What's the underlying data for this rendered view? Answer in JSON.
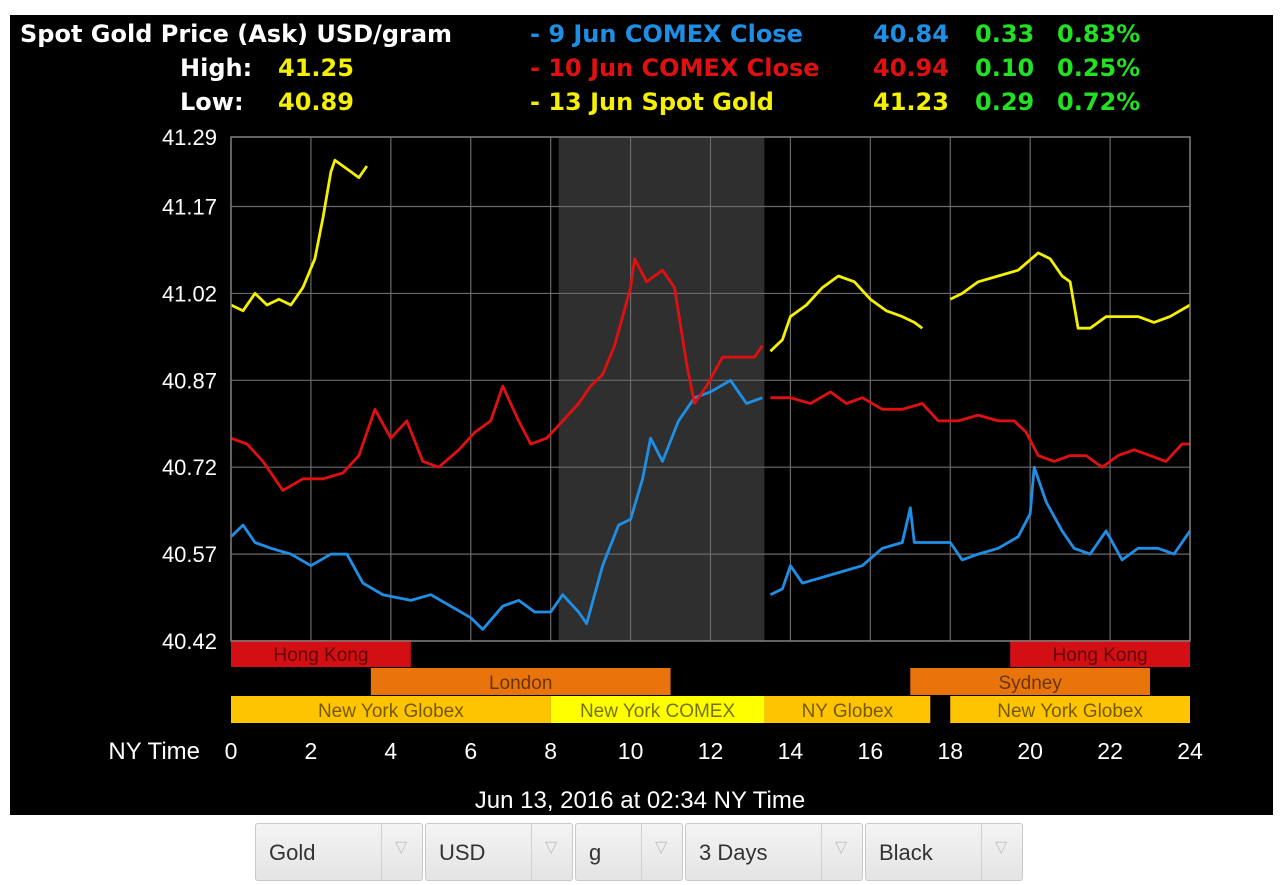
{
  "header": {
    "title": "Spot Gold Price (Ask) USD/gram",
    "high_label": "High:",
    "high_value": "41.25",
    "low_label": "Low:",
    "low_value": "40.89",
    "legend": [
      {
        "label": "- 9 Jun COMEX Close",
        "value": "40.84",
        "change": "0.33",
        "pct": "0.83%",
        "color": "#1f8fe6"
      },
      {
        "label": "- 10 Jun COMEX Close",
        "value": "40.94",
        "change": "0.10",
        "pct": "0.25%",
        "color": "#e01010"
      },
      {
        "label": "- 13 Jun Spot Gold",
        "value": "41.23",
        "change": "0.29",
        "pct": "0.72%",
        "color": "#f4f000"
      }
    ],
    "change_color": "#22e022"
  },
  "footer": {
    "x_title": "NY Time",
    "timestamp": "Jun 13, 2016 at 02:34 NY Time"
  },
  "chart_data": {
    "type": "line",
    "title": "Spot Gold Price (Ask) USD/gram",
    "xlabel": "NY Time",
    "xlim": [
      0,
      24
    ],
    "ylim": [
      40.42,
      41.29
    ],
    "x_ticks": [
      "0",
      "2",
      "4",
      "6",
      "8",
      "10",
      "12",
      "14",
      "16",
      "18",
      "20",
      "22",
      "24"
    ],
    "y_ticks": [
      "41.29",
      "41.17",
      "41.02",
      "40.87",
      "40.72",
      "40.57",
      "40.42"
    ],
    "grid": true,
    "shaded_region": [
      8.2,
      13.35
    ],
    "sessions": [
      {
        "name": "Hong Kong",
        "start": 0,
        "end": 4.5,
        "row": 0,
        "color": "#d40f14"
      },
      {
        "name": "Hong Kong",
        "start": 19.5,
        "end": 24,
        "row": 0,
        "color": "#d40f14"
      },
      {
        "name": "London",
        "start": 3.5,
        "end": 11,
        "row": 1,
        "color": "#e8740b"
      },
      {
        "name": "Sydney",
        "start": 17,
        "end": 23,
        "row": 1,
        "color": "#e8740b"
      },
      {
        "name": "New York Globex",
        "start": 0,
        "end": 8,
        "row": 2,
        "color": "#ffc400"
      },
      {
        "name": "New York COMEX",
        "start": 8,
        "end": 13.35,
        "row": 2,
        "color": "#ffff00"
      },
      {
        "name": "NY Globex",
        "start": 13.35,
        "end": 17.5,
        "row": 2,
        "color": "#ffc400"
      },
      {
        "name": "New York Globex",
        "start": 18,
        "end": 24,
        "row": 2,
        "color": "#ffc400"
      }
    ],
    "series": [
      {
        "name": "9 Jun COMEX Close",
        "color": "#1f8fe6",
        "segments": [
          [
            [
              0,
              40.6
            ],
            [
              0.3,
              40.62
            ],
            [
              0.6,
              40.59
            ],
            [
              1,
              40.58
            ],
            [
              1.5,
              40.57
            ],
            [
              2,
              40.55
            ],
            [
              2.5,
              40.57
            ],
            [
              2.9,
              40.57
            ],
            [
              3.3,
              40.52
            ],
            [
              3.8,
              40.5
            ],
            [
              4.5,
              40.49
            ],
            [
              5,
              40.5
            ],
            [
              5.5,
              40.48
            ],
            [
              6,
              40.46
            ],
            [
              6.3,
              40.44
            ],
            [
              6.8,
              40.48
            ],
            [
              7.2,
              40.49
            ],
            [
              7.6,
              40.47
            ],
            [
              8,
              40.47
            ],
            [
              8.3,
              40.5
            ],
            [
              8.7,
              40.47
            ],
            [
              8.9,
              40.45
            ],
            [
              9.3,
              40.55
            ],
            [
              9.7,
              40.62
            ],
            [
              10,
              40.63
            ],
            [
              10.3,
              40.7
            ],
            [
              10.5,
              40.77
            ],
            [
              10.8,
              40.73
            ],
            [
              11.2,
              40.8
            ],
            [
              11.6,
              40.84
            ],
            [
              12,
              40.85
            ],
            [
              12.5,
              40.87
            ],
            [
              12.9,
              40.83
            ],
            [
              13.3,
              40.84
            ]
          ],
          [
            [
              13.5,
              40.5
            ],
            [
              13.8,
              40.51
            ],
            [
              14,
              40.55
            ],
            [
              14.3,
              40.52
            ],
            [
              14.8,
              40.53
            ],
            [
              15.3,
              40.54
            ],
            [
              15.8,
              40.55
            ],
            [
              16.3,
              40.58
            ],
            [
              16.8,
              40.59
            ],
            [
              17,
              40.65
            ],
            [
              17.1,
              40.59
            ],
            [
              17.5,
              40.59
            ],
            [
              18,
              40.59
            ],
            [
              18.3,
              40.56
            ],
            [
              18.7,
              40.57
            ],
            [
              19.2,
              40.58
            ],
            [
              19.7,
              40.6
            ],
            [
              20,
              40.64
            ],
            [
              20.1,
              40.72
            ],
            [
              20.4,
              40.66
            ],
            [
              20.8,
              40.61
            ],
            [
              21.1,
              40.58
            ],
            [
              21.5,
              40.57
            ],
            [
              21.9,
              40.61
            ],
            [
              22.3,
              40.56
            ],
            [
              22.7,
              40.58
            ],
            [
              23.2,
              40.58
            ],
            [
              23.6,
              40.57
            ],
            [
              24,
              40.61
            ]
          ]
        ]
      },
      {
        "name": "10 Jun COMEX Close",
        "color": "#e01010",
        "segments": [
          [
            [
              0,
              40.77
            ],
            [
              0.4,
              40.76
            ],
            [
              0.8,
              40.73
            ],
            [
              1.3,
              40.68
            ],
            [
              1.8,
              40.7
            ],
            [
              2.3,
              40.7
            ],
            [
              2.8,
              40.71
            ],
            [
              3.2,
              40.74
            ],
            [
              3.6,
              40.82
            ],
            [
              4,
              40.77
            ],
            [
              4.4,
              40.8
            ],
            [
              4.8,
              40.73
            ],
            [
              5.2,
              40.72
            ],
            [
              5.7,
              40.75
            ],
            [
              6.1,
              40.78
            ],
            [
              6.5,
              40.8
            ],
            [
              6.8,
              40.86
            ],
            [
              7.2,
              40.8
            ],
            [
              7.5,
              40.76
            ],
            [
              7.9,
              40.77
            ],
            [
              8.3,
              40.8
            ],
            [
              8.7,
              40.83
            ],
            [
              9,
              40.86
            ],
            [
              9.3,
              40.88
            ],
            [
              9.6,
              40.93
            ],
            [
              10,
              41.03
            ],
            [
              10.1,
              41.08
            ],
            [
              10.4,
              41.04
            ],
            [
              10.8,
              41.06
            ],
            [
              11.1,
              41.03
            ],
            [
              11.4,
              40.9
            ],
            [
              11.6,
              40.83
            ],
            [
              11.9,
              40.86
            ],
            [
              12.3,
              40.91
            ],
            [
              12.7,
              40.91
            ],
            [
              13.1,
              40.91
            ],
            [
              13.3,
              40.93
            ]
          ],
          [
            [
              13.5,
              40.84
            ],
            [
              14,
              40.84
            ],
            [
              14.5,
              40.83
            ],
            [
              15,
              40.85
            ],
            [
              15.4,
              40.83
            ],
            [
              15.8,
              40.84
            ],
            [
              16.3,
              40.82
            ],
            [
              16.8,
              40.82
            ],
            [
              17.3,
              40.83
            ],
            [
              17.7,
              40.8
            ],
            [
              18.2,
              40.8
            ],
            [
              18.7,
              40.81
            ],
            [
              19.2,
              40.8
            ],
            [
              19.6,
              40.8
            ],
            [
              19.9,
              40.78
            ],
            [
              20.2,
              40.74
            ],
            [
              20.6,
              40.73
            ],
            [
              21,
              40.74
            ],
            [
              21.4,
              40.74
            ],
            [
              21.8,
              40.72
            ],
            [
              22.2,
              40.74
            ],
            [
              22.6,
              40.75
            ],
            [
              23,
              40.74
            ],
            [
              23.4,
              40.73
            ],
            [
              23.8,
              40.76
            ],
            [
              24,
              40.76
            ]
          ]
        ]
      },
      {
        "name": "13 Jun Spot Gold",
        "color": "#f4f000",
        "segments": [
          [
            [
              0,
              41.0
            ],
            [
              0.3,
              40.99
            ],
            [
              0.6,
              41.02
            ],
            [
              0.9,
              41.0
            ],
            [
              1.2,
              41.01
            ],
            [
              1.5,
              41.0
            ],
            [
              1.8,
              41.03
            ],
            [
              2.1,
              41.08
            ],
            [
              2.3,
              41.15
            ],
            [
              2.5,
              41.23
            ],
            [
              2.6,
              41.25
            ],
            [
              2.8,
              41.24
            ],
            [
              3,
              41.23
            ],
            [
              3.2,
              41.22
            ],
            [
              3.4,
              41.24
            ]
          ],
          [
            [
              13.5,
              40.92
            ],
            [
              13.8,
              40.94
            ],
            [
              14,
              40.98
            ],
            [
              14.4,
              41.0
            ],
            [
              14.8,
              41.03
            ],
            [
              15.2,
              41.05
            ],
            [
              15.6,
              41.04
            ],
            [
              16,
              41.01
            ],
            [
              16.4,
              40.99
            ],
            [
              16.8,
              40.98
            ],
            [
              17.1,
              40.97
            ],
            [
              17.3,
              40.96
            ]
          ],
          [
            [
              18,
              41.01
            ],
            [
              18.3,
              41.02
            ],
            [
              18.7,
              41.04
            ],
            [
              19.2,
              41.05
            ],
            [
              19.7,
              41.06
            ],
            [
              20.2,
              41.09
            ],
            [
              20.5,
              41.08
            ],
            [
              20.8,
              41.05
            ],
            [
              21,
              41.04
            ],
            [
              21.2,
              40.96
            ],
            [
              21.5,
              40.96
            ],
            [
              21.9,
              40.98
            ],
            [
              22.3,
              40.98
            ],
            [
              22.7,
              40.98
            ],
            [
              23.1,
              40.97
            ],
            [
              23.5,
              40.98
            ],
            [
              24,
              41.0
            ]
          ]
        ]
      }
    ]
  },
  "controls": {
    "selects": [
      {
        "label": "Gold",
        "name": "metal-select"
      },
      {
        "label": "USD",
        "name": "currency-select"
      },
      {
        "label": "g",
        "name": "unit-select"
      },
      {
        "label": "3 Days",
        "name": "period-select"
      },
      {
        "label": "Black",
        "name": "theme-select"
      }
    ],
    "arrow_glyph": "▽"
  }
}
